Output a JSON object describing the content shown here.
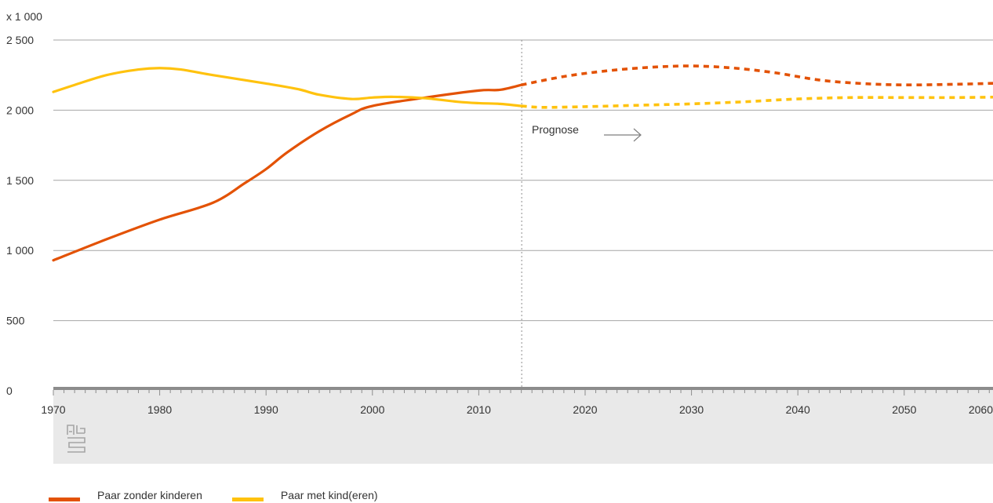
{
  "chart_data": {
    "type": "line",
    "unit_label": "x 1 000",
    "xlim": [
      1970,
      2060
    ],
    "ylim": [
      0,
      2500
    ],
    "y_ticks": [
      0,
      500,
      1000,
      1500,
      2000,
      2500
    ],
    "y_tick_labels": [
      "0",
      "500",
      "1 000",
      "1 500",
      "2 000",
      "2 500"
    ],
    "x_ticks": [
      1970,
      1980,
      1990,
      2000,
      2010,
      2020,
      2030,
      2040,
      2050,
      2060
    ],
    "x_tick_labels": [
      "1970",
      "1980",
      "1990",
      "2000",
      "2010",
      "2020",
      "2030",
      "2040",
      "2050",
      "2060"
    ],
    "forecast_start": 2014,
    "annotation": "Prognose",
    "grid": true,
    "legend_position": "bottom-left",
    "series": [
      {
        "name": "Paar zonder kinderen",
        "color": "#e35205",
        "x": [
          1970,
          1975,
          1980,
          1985,
          1988,
          1990,
          1992,
          1995,
          1998,
          2000,
          2005,
          2010,
          2012,
          2014,
          2018,
          2022,
          2026,
          2030,
          2034,
          2038,
          2042,
          2046,
          2050,
          2055,
          2060
        ],
        "y": [
          930,
          1080,
          1220,
          1340,
          1480,
          1580,
          1700,
          1850,
          1970,
          2030,
          2090,
          2140,
          2145,
          2180,
          2240,
          2280,
          2305,
          2315,
          2300,
          2265,
          2215,
          2190,
          2180,
          2185,
          2195
        ]
      },
      {
        "name": "Paar met kind(eren)",
        "color": "#ffc20e",
        "x": [
          1970,
          1972,
          1975,
          1978,
          1980,
          1982,
          1985,
          1990,
          1993,
          1995,
          1998,
          2000,
          2002,
          2005,
          2008,
          2010,
          2012,
          2014,
          2016,
          2020,
          2025,
          2030,
          2035,
          2040,
          2045,
          2050,
          2055,
          2060
        ],
        "y": [
          2130,
          2180,
          2250,
          2290,
          2300,
          2290,
          2250,
          2190,
          2150,
          2110,
          2080,
          2090,
          2095,
          2085,
          2060,
          2050,
          2045,
          2030,
          2020,
          2025,
          2035,
          2045,
          2060,
          2080,
          2090,
          2090,
          2090,
          2095
        ]
      }
    ]
  }
}
